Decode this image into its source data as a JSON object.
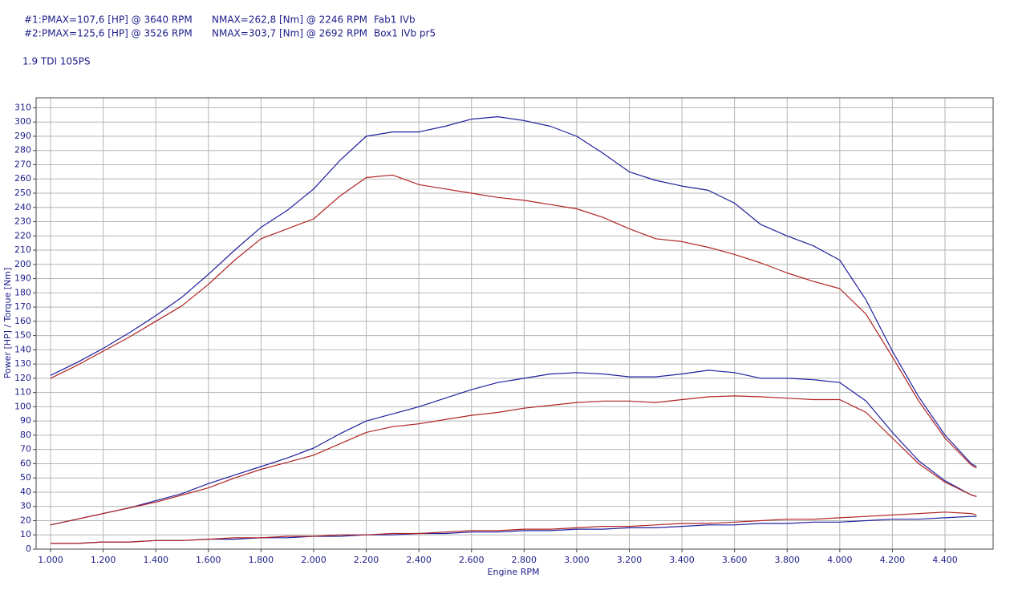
{
  "chart_data": {
    "type": "line",
    "header_rows": [
      [
        "#1:",
        "PMAX=107,6 [HP] @ 3640 RPM",
        "NMAX=262,8 [Nm] @ 2246 RPM",
        "Fab1 IVb"
      ],
      [
        "#2:",
        "PMAX=125,6 [HP] @ 3526 RPM",
        "NMAX=303,7 [Nm] @ 2692 RPM",
        "Box1 IVb pr5"
      ]
    ],
    "subtitle": "1.9 TDI 105PS",
    "xlabel": "Engine RPM",
    "ylabel": "Power [HP] / Torque [Nm]",
    "x": [
      1000,
      1100,
      1200,
      1300,
      1400,
      1500,
      1600,
      1700,
      1800,
      1900,
      2000,
      2100,
      2200,
      2300,
      2400,
      2500,
      2600,
      2700,
      2800,
      2900,
      3000,
      3100,
      3200,
      3300,
      3400,
      3500,
      3600,
      3700,
      3800,
      3900,
      4000,
      4100,
      4200,
      4300,
      4400,
      4500,
      4520
    ],
    "series": [
      {
        "color": "#1f1f9e",
        "values": [
          122,
          131,
          141,
          152,
          164,
          177,
          193,
          210,
          226,
          238,
          253,
          273,
          290,
          293,
          293,
          297,
          302,
          303.7,
          301,
          297,
          290,
          278,
          265,
          259,
          255,
          252,
          243,
          228,
          220,
          213,
          203,
          175,
          139,
          107,
          80,
          60,
          58
        ]
      },
      {
        "color": "#b02424",
        "values": [
          120,
          129,
          139,
          149,
          160,
          171,
          186,
          203,
          218,
          225,
          232,
          248,
          261,
          262.8,
          256,
          253,
          250,
          247,
          245,
          242,
          239,
          233,
          225,
          218,
          216,
          212,
          207,
          201,
          194,
          188,
          183,
          165,
          135,
          104,
          78,
          59,
          57
        ]
      },
      {
        "color": "#1f1f9e",
        "values": [
          17,
          21,
          25,
          29,
          34,
          39,
          46,
          52,
          58,
          64,
          71,
          81,
          90,
          95,
          100,
          106,
          112,
          117,
          120,
          123,
          124,
          123,
          121,
          121,
          123,
          125.6,
          124,
          120,
          120,
          119,
          117,
          104,
          82,
          62,
          48,
          38,
          37
        ]
      },
      {
        "color": "#b02424",
        "values": [
          17,
          21,
          25,
          29,
          33,
          38,
          43,
          50,
          56,
          61,
          66,
          74,
          82,
          86,
          88,
          91,
          94,
          96,
          99,
          101,
          103,
          104,
          104,
          103,
          105,
          107,
          107.6,
          107,
          106,
          105,
          105,
          96,
          78,
          60,
          47,
          38,
          37
        ]
      },
      {
        "color": "#1f1f9e",
        "values": [
          4,
          4,
          5,
          5,
          6,
          6,
          7,
          7,
          8,
          8,
          9,
          9,
          10,
          10,
          11,
          11,
          12,
          12,
          13,
          13,
          14,
          14,
          15,
          15,
          16,
          17,
          17,
          18,
          18,
          19,
          19,
          20,
          21,
          21,
          22,
          23,
          23
        ]
      },
      {
        "color": "#b02424",
        "values": [
          4,
          4,
          5,
          5,
          6,
          6,
          7,
          8,
          8,
          9,
          9,
          10,
          10,
          11,
          11,
          12,
          13,
          13,
          14,
          14,
          15,
          16,
          16,
          17,
          18,
          18,
          19,
          20,
          21,
          21,
          22,
          23,
          24,
          25,
          26,
          25,
          24
        ]
      }
    ],
    "xlim": [
      945,
      4583
    ],
    "ylim": [
      0,
      317
    ],
    "xticks": [
      {
        "value": 1000,
        "label": "1.000"
      },
      {
        "value": 1200,
        "label": "1.200"
      },
      {
        "value": 1400,
        "label": "1.400"
      },
      {
        "value": 1600,
        "label": "1.600"
      },
      {
        "value": 1800,
        "label": "1.800"
      },
      {
        "value": 2000,
        "label": "2.000"
      },
      {
        "value": 2200,
        "label": "2.200"
      },
      {
        "value": 2400,
        "label": "2.400"
      },
      {
        "value": 2600,
        "label": "2.600"
      },
      {
        "value": 2800,
        "label": "2.800"
      },
      {
        "value": 3000,
        "label": "3.000"
      },
      {
        "value": 3200,
        "label": "3.200"
      },
      {
        "value": 3400,
        "label": "3.400"
      },
      {
        "value": 3600,
        "label": "3.600"
      },
      {
        "value": 3800,
        "label": "3.800"
      },
      {
        "value": 4000,
        "label": "4.000"
      },
      {
        "value": 4200,
        "label": "4.200"
      },
      {
        "value": 4400,
        "label": "4.400"
      }
    ],
    "yticks": [
      0,
      10,
      20,
      30,
      40,
      50,
      60,
      70,
      80,
      90,
      100,
      110,
      120,
      130,
      140,
      150,
      160,
      170,
      180,
      190,
      200,
      210,
      220,
      230,
      240,
      250,
      260,
      270,
      280,
      290,
      300,
      310
    ],
    "grid": true
  }
}
